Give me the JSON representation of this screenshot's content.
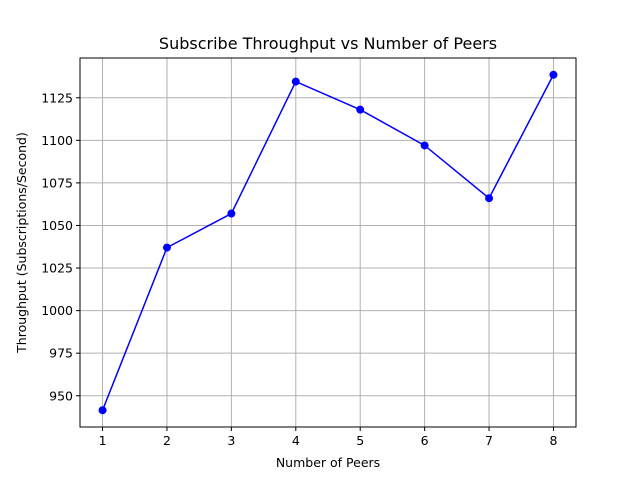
{
  "chart_data": {
    "type": "line",
    "title": "Subscribe Throughput vs Number of Peers",
    "xlabel": "Number of Peers",
    "ylabel": "Throughput (Subscriptions/Second)",
    "x": [
      1,
      2,
      3,
      4,
      5,
      6,
      7,
      8
    ],
    "series": [
      {
        "values": [
          941.5,
          1037,
          1057,
          1134.5,
          1118,
          1097,
          1066,
          1138.5
        ],
        "color": "#0000ff",
        "marker": "circle"
      }
    ],
    "xticks": [
      1,
      2,
      3,
      4,
      5,
      6,
      7,
      8
    ],
    "yticks": [
      950,
      975,
      1000,
      1025,
      1050,
      1075,
      1100,
      1125
    ],
    "xlim": [
      0.65,
      8.35
    ],
    "ylim": [
      931.65,
      1148.35
    ],
    "grid": true
  }
}
